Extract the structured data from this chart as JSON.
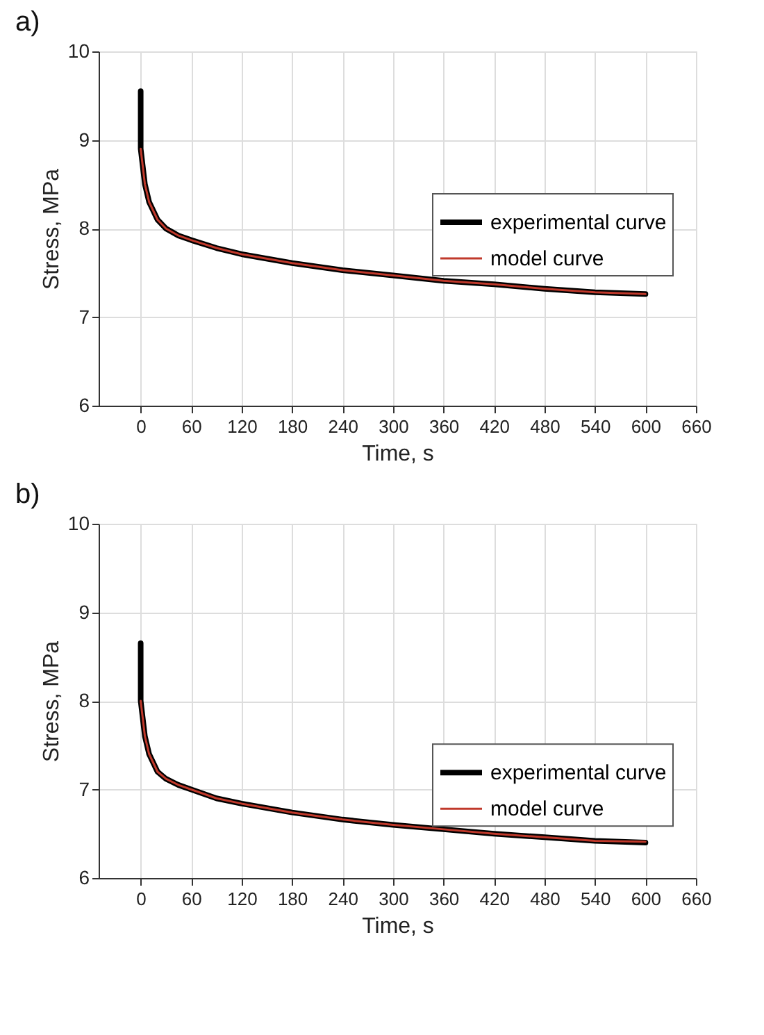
{
  "chart_data": [
    {
      "type": "line",
      "title": "a)",
      "xlabel": "Time, s",
      "ylabel": "Stress, MPa",
      "xlim": [
        -50,
        660
      ],
      "ylim": [
        6,
        10
      ],
      "xticks": [
        0,
        60,
        120,
        180,
        240,
        300,
        360,
        420,
        480,
        540,
        600,
        660
      ],
      "yticks": [
        6,
        7,
        8,
        9,
        10
      ],
      "grid": true,
      "legend": "right",
      "marker": "none",
      "line_style": "solid",
      "series": [
        {
          "name": "experimental curve",
          "color": "#000000",
          "x": [
            0,
            0,
            5,
            10,
            20,
            30,
            45,
            60,
            90,
            120,
            180,
            240,
            300,
            360,
            420,
            480,
            540,
            600
          ],
          "values": [
            9.55,
            8.9,
            8.5,
            8.3,
            8.1,
            8.0,
            7.92,
            7.87,
            7.78,
            7.71,
            7.61,
            7.53,
            7.47,
            7.41,
            7.37,
            7.32,
            7.28,
            7.26
          ]
        },
        {
          "name": "model curve",
          "color": "#c0392b",
          "x": [
            0,
            5,
            10,
            20,
            30,
            45,
            60,
            90,
            120,
            180,
            240,
            300,
            360,
            420,
            480,
            540,
            600
          ],
          "values": [
            8.9,
            8.5,
            8.3,
            8.1,
            8.0,
            7.92,
            7.87,
            7.78,
            7.71,
            7.61,
            7.53,
            7.47,
            7.41,
            7.37,
            7.32,
            7.28,
            7.26
          ]
        }
      ]
    },
    {
      "type": "line",
      "title": "b)",
      "xlabel": "Time, s",
      "ylabel": "Stress, MPa",
      "xlim": [
        -50,
        660
      ],
      "ylim": [
        6,
        10
      ],
      "xticks": [
        0,
        60,
        120,
        180,
        240,
        300,
        360,
        420,
        480,
        540,
        600,
        660
      ],
      "yticks": [
        6,
        7,
        8,
        9,
        10
      ],
      "grid": true,
      "legend": "bottom right",
      "marker": "none",
      "line_style": "solid",
      "series": [
        {
          "name": "experimental curve",
          "color": "#000000",
          "x": [
            0,
            0,
            5,
            10,
            20,
            30,
            45,
            60,
            90,
            120,
            180,
            240,
            300,
            360,
            420,
            480,
            540,
            600
          ],
          "values": [
            8.65,
            8.0,
            7.6,
            7.4,
            7.2,
            7.12,
            7.05,
            7.0,
            6.9,
            6.84,
            6.74,
            6.66,
            6.6,
            6.55,
            6.5,
            6.46,
            6.42,
            6.4
          ]
        },
        {
          "name": "model curve",
          "color": "#c0392b",
          "x": [
            0,
            5,
            10,
            20,
            30,
            45,
            60,
            90,
            120,
            180,
            240,
            300,
            360,
            420,
            480,
            540,
            600
          ],
          "values": [
            8.0,
            7.6,
            7.4,
            7.2,
            7.12,
            7.05,
            7.0,
            6.9,
            6.84,
            6.74,
            6.66,
            6.6,
            6.55,
            6.5,
            6.46,
            6.42,
            6.41
          ]
        }
      ]
    }
  ]
}
